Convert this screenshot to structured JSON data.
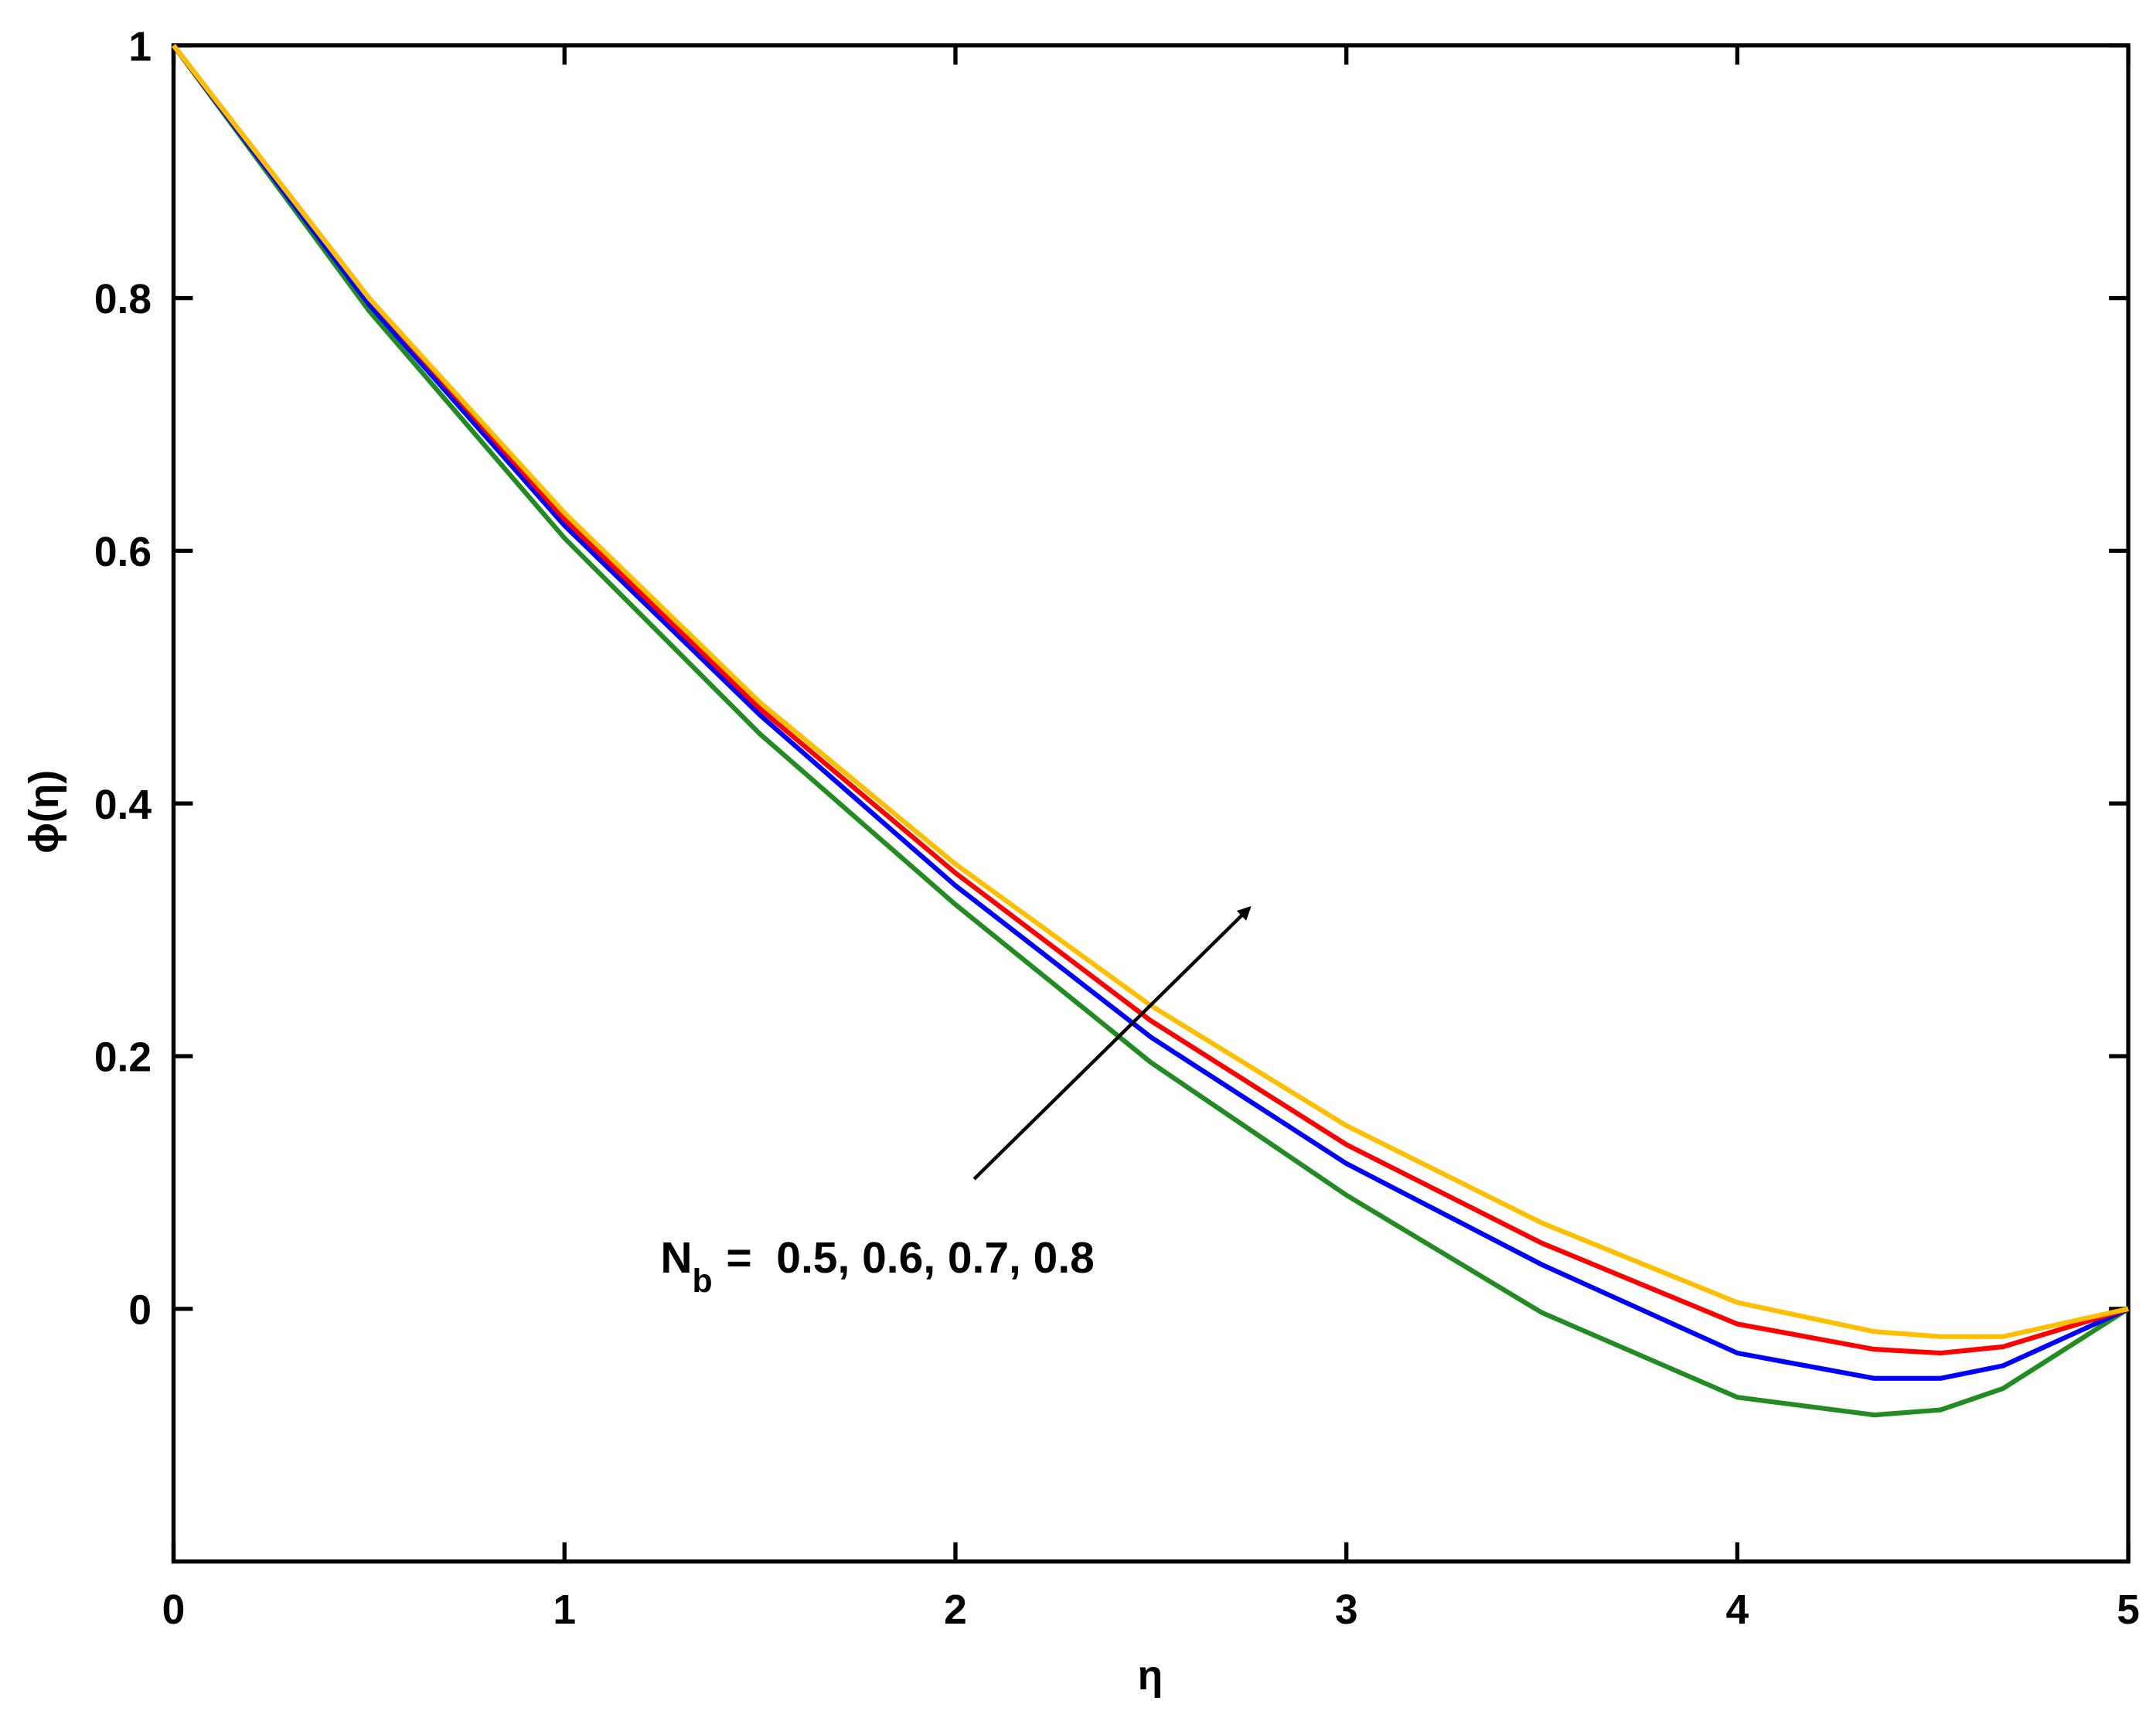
{
  "chart_data": {
    "type": "line",
    "x_label": "η",
    "y_label": "ϕ(η)",
    "x": [
      0,
      0.5,
      1,
      1.5,
      2,
      2.5,
      3,
      3.5,
      4,
      4.35,
      4.52,
      4.68,
      5
    ],
    "series": [
      {
        "color": "#228b22",
        "values": [
          1,
          0.79,
          0.61,
          0.455,
          0.32,
          0.195,
          0.09,
          -0.003,
          -0.07,
          -0.084,
          -0.08,
          -0.063,
          0
        ]
      },
      {
        "color": "#0000ff",
        "values": [
          1,
          0.795,
          0.62,
          0.47,
          0.335,
          0.215,
          0.115,
          0.035,
          -0.035,
          -0.055,
          -0.055,
          -0.045,
          0
        ]
      },
      {
        "color": "#ff0000",
        "values": [
          1,
          0.8,
          0.625,
          0.475,
          0.345,
          0.228,
          0.13,
          0.052,
          -0.012,
          -0.032,
          -0.035,
          -0.03,
          0
        ]
      },
      {
        "color": "#ffbf00",
        "values": [
          1,
          0.8,
          0.63,
          0.48,
          0.352,
          0.24,
          0.145,
          0.068,
          0.005,
          -0.018,
          -0.022,
          -0.022,
          0
        ]
      }
    ],
    "xlim": [
      0,
      5
    ],
    "ylim": [
      -0.2,
      1
    ],
    "xticks": [
      0,
      1,
      2,
      3,
      4,
      5
    ],
    "yticks": [
      0,
      0.2,
      0.4,
      0.6,
      0.8,
      1
    ],
    "annotation": {
      "symbol": "N",
      "subscript": "b",
      "text": "=  0.5, 0.6, 0.7, 0.8"
    }
  }
}
